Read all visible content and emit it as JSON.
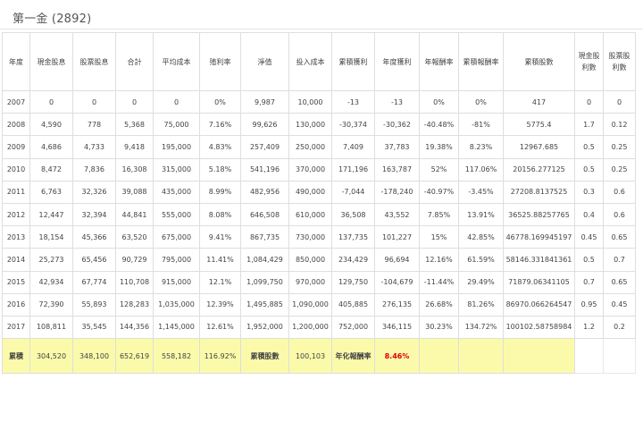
{
  "page_title": "第一金 (2892)",
  "columns": [
    "年度",
    "現金股息",
    "股票股息",
    "合計",
    "平均成本",
    "殖利率",
    "淨值",
    "投入成本",
    "累積獲利",
    "年度獲利",
    "年報酬率",
    "累積報酬率",
    "累積股數",
    "現金股利數",
    "股票股利數"
  ],
  "rows": [
    [
      "2007",
      "0",
      "0",
      "0",
      "0",
      "0%",
      "9,987",
      "10,000",
      "-13",
      "-13",
      "0%",
      "0%",
      "417",
      "0",
      "0"
    ],
    [
      "2008",
      "4,590",
      "778",
      "5,368",
      "75,000",
      "7.16%",
      "99,626",
      "130,000",
      "-30,374",
      "-30,362",
      "-40.48%",
      "-81%",
      "5775.4",
      "1.7",
      "0.12"
    ],
    [
      "2009",
      "4,686",
      "4,733",
      "9,418",
      "195,000",
      "4.83%",
      "257,409",
      "250,000",
      "7,409",
      "37,783",
      "19.38%",
      "8.23%",
      "12967.685",
      "0.5",
      "0.25"
    ],
    [
      "2010",
      "8,472",
      "7,836",
      "16,308",
      "315,000",
      "5.18%",
      "541,196",
      "370,000",
      "171,196",
      "163,787",
      "52%",
      "117.06%",
      "20156.277125",
      "0.5",
      "0.25"
    ],
    [
      "2011",
      "6,763",
      "32,326",
      "39,088",
      "435,000",
      "8.99%",
      "482,956",
      "490,000",
      "-7,044",
      "-178,240",
      "-40.97%",
      "-3.45%",
      "27208.8137525",
      "0.3",
      "0.6"
    ],
    [
      "2012",
      "12,447",
      "32,394",
      "44,841",
      "555,000",
      "8.08%",
      "646,508",
      "610,000",
      "36,508",
      "43,552",
      "7.85%",
      "13.91%",
      "36525.88257765",
      "0.4",
      "0.6"
    ],
    [
      "2013",
      "18,154",
      "45,366",
      "63,520",
      "675,000",
      "9.41%",
      "867,735",
      "730,000",
      "137,735",
      "101,227",
      "15%",
      "42.85%",
      "46778.169945197",
      "0.45",
      "0.65"
    ],
    [
      "2014",
      "25,273",
      "65,456",
      "90,729",
      "795,000",
      "11.41%",
      "1,084,429",
      "850,000",
      "234,429",
      "96,694",
      "12.16%",
      "61.59%",
      "58146.331841361",
      "0.5",
      "0.7"
    ],
    [
      "2015",
      "42,934",
      "67,774",
      "110,708",
      "915,000",
      "12.1%",
      "1,099,750",
      "970,000",
      "129,750",
      "-104,679",
      "-11.44%",
      "29.49%",
      "71879.06341105",
      "0.7",
      "0.65"
    ],
    [
      "2016",
      "72,390",
      "55,893",
      "128,283",
      "1,035,000",
      "12.39%",
      "1,495,885",
      "1,090,000",
      "405,885",
      "276,135",
      "26.68%",
      "81.26%",
      "86970.066264547",
      "0.95",
      "0.45"
    ],
    [
      "2017",
      "108,811",
      "35,545",
      "144,356",
      "1,145,000",
      "12.61%",
      "1,952,000",
      "1,200,000",
      "752,000",
      "346,115",
      "30.23%",
      "134.72%",
      "100102.58758984",
      "1.2",
      "0.2"
    ]
  ],
  "total_row": {
    "label": "累積",
    "cash_dividend": "304,520",
    "stock_dividend": "348,100",
    "total": "652,619",
    "avg_cost": "558,182",
    "yield": "116.92%",
    "shares_label": "累積股數",
    "shares_value": "100,103",
    "annualized_label": "年化報酬率",
    "annualized_value": "8.46%"
  }
}
